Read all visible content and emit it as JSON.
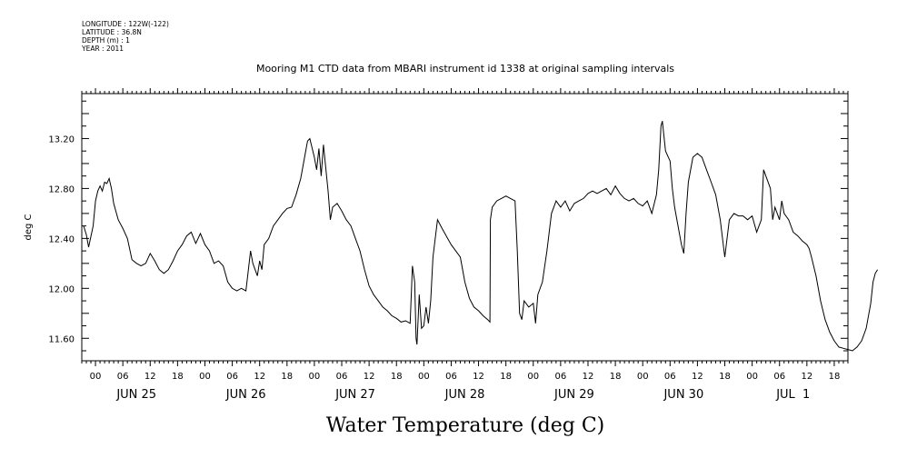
{
  "meta": {
    "longitude": "LONGITUDE : 122W(-122)",
    "latitude": "LATITUDE : 36.8N",
    "depth": "DEPTH (m) : 1",
    "year": "YEAR : 2011"
  },
  "chart_data": {
    "type": "line",
    "title": "Mooring M1 CTD data from MBARI instrument id 1338 at original sampling intervals",
    "xlabel": "Water Temperature (deg C)",
    "ylabel": "deg C",
    "x_range_hours": [
      -3,
      165
    ],
    "ylim": [
      11.42,
      13.56
    ],
    "y_ticks": [
      "11.60",
      "12.00",
      "12.40",
      "12.80",
      "13.20"
    ],
    "x_hour_labels": [
      "00",
      "06",
      "12",
      "18",
      "00",
      "06",
      "12",
      "18",
      "00",
      "06",
      "12",
      "18",
      "00",
      "06",
      "12",
      "18",
      "00",
      "06",
      "12",
      "18",
      "00",
      "06",
      "12",
      "18",
      "00",
      "06",
      "12",
      "18"
    ],
    "day_labels": [
      "JUN 25",
      "JUN 26",
      "JUN 27",
      "JUN 28",
      "JUN 29",
      "JUN 30",
      "JUL  1"
    ],
    "grid": false,
    "series": [
      {
        "color": "#000000",
        "points": [
          [
            -2.6,
            12.5
          ],
          [
            -2.0,
            12.43
          ],
          [
            -1.5,
            12.33
          ],
          [
            -0.5,
            12.5
          ],
          [
            0.0,
            12.7
          ],
          [
            0.5,
            12.78
          ],
          [
            1.0,
            12.82
          ],
          [
            1.5,
            12.78
          ],
          [
            2.0,
            12.85
          ],
          [
            2.5,
            12.84
          ],
          [
            3.0,
            12.88
          ],
          [
            3.5,
            12.8
          ],
          [
            4.0,
            12.68
          ],
          [
            5.0,
            12.55
          ],
          [
            6.0,
            12.48
          ],
          [
            7.0,
            12.4
          ],
          [
            8.0,
            12.23
          ],
          [
            9.0,
            12.2
          ],
          [
            10.0,
            12.18
          ],
          [
            11.0,
            12.2
          ],
          [
            12.0,
            12.28
          ],
          [
            13.0,
            12.22
          ],
          [
            14.0,
            12.15
          ],
          [
            15.0,
            12.12
          ],
          [
            16.0,
            12.15
          ],
          [
            17.0,
            12.22
          ],
          [
            18.0,
            12.3
          ],
          [
            19.0,
            12.35
          ],
          [
            20.0,
            12.42
          ],
          [
            21.0,
            12.45
          ],
          [
            22.0,
            12.36
          ],
          [
            23.0,
            12.44
          ],
          [
            24.0,
            12.35
          ],
          [
            25.0,
            12.3
          ],
          [
            26.0,
            12.2
          ],
          [
            27.0,
            12.22
          ],
          [
            28.0,
            12.18
          ],
          [
            29.0,
            12.05
          ],
          [
            30.0,
            12.0
          ],
          [
            31.0,
            11.98
          ],
          [
            32.0,
            12.0
          ],
          [
            33.0,
            11.98
          ],
          [
            34.0,
            12.3
          ],
          [
            34.5,
            12.2
          ],
          [
            35.0,
            12.15
          ],
          [
            35.5,
            12.1
          ],
          [
            36.0,
            12.22
          ],
          [
            36.5,
            12.15
          ],
          [
            37.0,
            12.35
          ],
          [
            38.0,
            12.4
          ],
          [
            39.0,
            12.5
          ],
          [
            40.0,
            12.55
          ],
          [
            41.0,
            12.6
          ],
          [
            42.0,
            12.64
          ],
          [
            43.0,
            12.65
          ],
          [
            44.0,
            12.75
          ],
          [
            45.0,
            12.88
          ],
          [
            46.0,
            13.08
          ],
          [
            46.5,
            13.18
          ],
          [
            47.0,
            13.2
          ],
          [
            48.0,
            13.05
          ],
          [
            48.5,
            12.95
          ],
          [
            49.0,
            13.12
          ],
          [
            49.5,
            12.9
          ],
          [
            50.0,
            13.15
          ],
          [
            51.0,
            12.78
          ],
          [
            51.5,
            12.55
          ],
          [
            52.0,
            12.65
          ],
          [
            53.0,
            12.68
          ],
          [
            54.0,
            12.62
          ],
          [
            55.0,
            12.55
          ],
          [
            56.0,
            12.5
          ],
          [
            57.0,
            12.4
          ],
          [
            58.0,
            12.3
          ],
          [
            59.0,
            12.15
          ],
          [
            60.0,
            12.02
          ],
          [
            61.0,
            11.95
          ],
          [
            62.0,
            11.9
          ],
          [
            63.0,
            11.85
          ],
          [
            64.0,
            11.82
          ],
          [
            65.0,
            11.78
          ],
          [
            66.0,
            11.76
          ],
          [
            67.0,
            11.73
          ],
          [
            68.0,
            11.74
          ],
          [
            69.0,
            11.72
          ],
          [
            69.5,
            12.18
          ],
          [
            70.0,
            12.05
          ],
          [
            70.3,
            11.6
          ],
          [
            70.5,
            11.55
          ],
          [
            71.0,
            11.95
          ],
          [
            71.5,
            11.68
          ],
          [
            72.0,
            11.7
          ],
          [
            72.5,
            11.85
          ],
          [
            73.0,
            11.72
          ],
          [
            73.5,
            11.9
          ],
          [
            74.0,
            12.25
          ],
          [
            75.0,
            12.55
          ],
          [
            76.0,
            12.48
          ],
          [
            78.0,
            12.35
          ],
          [
            80.0,
            12.25
          ],
          [
            81.0,
            12.05
          ],
          [
            82.0,
            11.92
          ],
          [
            83.0,
            11.85
          ],
          [
            84.0,
            11.82
          ],
          [
            85.0,
            11.78
          ],
          [
            86.0,
            11.75
          ],
          [
            86.5,
            11.73
          ],
          [
            86.6,
            12.55
          ],
          [
            87.0,
            12.65
          ],
          [
            88.0,
            12.7
          ],
          [
            89.0,
            12.72
          ],
          [
            90.0,
            12.74
          ],
          [
            91.0,
            12.72
          ],
          [
            92.0,
            12.7
          ],
          [
            92.5,
            12.3
          ],
          [
            93.0,
            11.8
          ],
          [
            93.5,
            11.75
          ],
          [
            94.0,
            11.9
          ],
          [
            95.0,
            11.85
          ],
          [
            96.0,
            11.88
          ],
          [
            96.5,
            11.72
          ],
          [
            97.0,
            11.95
          ],
          [
            98.0,
            12.05
          ],
          [
            99.0,
            12.3
          ],
          [
            100.0,
            12.6
          ],
          [
            101.0,
            12.7
          ],
          [
            102.0,
            12.65
          ],
          [
            103.0,
            12.7
          ],
          [
            104.0,
            12.62
          ],
          [
            105.0,
            12.68
          ],
          [
            106.0,
            12.7
          ],
          [
            107.0,
            12.72
          ],
          [
            108.0,
            12.76
          ],
          [
            109.0,
            12.78
          ],
          [
            110.0,
            12.76
          ],
          [
            111.0,
            12.78
          ],
          [
            112.0,
            12.8
          ],
          [
            113.0,
            12.75
          ],
          [
            114.0,
            12.82
          ],
          [
            115.0,
            12.76
          ],
          [
            116.0,
            12.72
          ],
          [
            117.0,
            12.7
          ],
          [
            118.0,
            12.72
          ],
          [
            119.0,
            12.68
          ],
          [
            120.0,
            12.66
          ],
          [
            121.0,
            12.7
          ],
          [
            122.0,
            12.6
          ],
          [
            123.0,
            12.75
          ],
          [
            123.5,
            12.95
          ],
          [
            124.0,
            13.3
          ],
          [
            124.3,
            13.34
          ],
          [
            125.0,
            13.1
          ],
          [
            126.0,
            13.02
          ],
          [
            126.5,
            12.8
          ],
          [
            127.0,
            12.65
          ],
          [
            128.0,
            12.45
          ],
          [
            128.5,
            12.35
          ],
          [
            129.0,
            12.28
          ],
          [
            129.5,
            12.6
          ],
          [
            130.0,
            12.85
          ],
          [
            131.0,
            13.05
          ],
          [
            132.0,
            13.08
          ],
          [
            133.0,
            13.05
          ],
          [
            134.0,
            12.95
          ],
          [
            135.0,
            12.85
          ],
          [
            136.0,
            12.75
          ],
          [
            137.0,
            12.55
          ],
          [
            138.0,
            12.25
          ],
          [
            139.0,
            12.55
          ],
          [
            140.0,
            12.6
          ],
          [
            141.0,
            12.58
          ],
          [
            142.0,
            12.58
          ],
          [
            143.0,
            12.55
          ],
          [
            144.0,
            12.58
          ],
          [
            145.0,
            12.45
          ],
          [
            146.0,
            12.55
          ],
          [
            146.5,
            12.95
          ],
          [
            147.0,
            12.9
          ],
          [
            148.0,
            12.8
          ],
          [
            148.5,
            12.55
          ],
          [
            149.0,
            12.65
          ],
          [
            150.0,
            12.55
          ],
          [
            150.5,
            12.7
          ],
          [
            151.0,
            12.6
          ],
          [
            152.0,
            12.55
          ],
          [
            153.0,
            12.45
          ],
          [
            154.0,
            12.42
          ],
          [
            155.0,
            12.38
          ],
          [
            156.0,
            12.35
          ],
          [
            156.5,
            12.32
          ],
          [
            157.0,
            12.25
          ],
          [
            158.0,
            12.1
          ],
          [
            159.0,
            11.9
          ],
          [
            160.0,
            11.75
          ],
          [
            161.0,
            11.65
          ],
          [
            162.0,
            11.58
          ],
          [
            163.0,
            11.53
          ],
          [
            164.0,
            11.52
          ],
          [
            165.0,
            11.51
          ],
          [
            166.0,
            11.5
          ],
          [
            167.0,
            11.53
          ],
          [
            168.0,
            11.58
          ],
          [
            169.0,
            11.68
          ],
          [
            170.0,
            11.88
          ],
          [
            170.5,
            12.05
          ],
          [
            171.0,
            12.12
          ],
          [
            171.5,
            12.15
          ]
        ]
      }
    ]
  }
}
